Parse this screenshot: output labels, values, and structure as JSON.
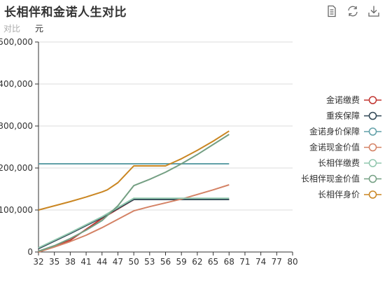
{
  "title": "长相伴和金诺人生对比",
  "subtitle_label": "对比",
  "unit_label": "元",
  "toolbox": [
    {
      "name": "data-view-icon"
    },
    {
      "name": "restore-icon"
    },
    {
      "name": "save-image-icon"
    }
  ],
  "chart_data": {
    "type": "line",
    "x_ticks": [
      32,
      35,
      38,
      41,
      44,
      47,
      50,
      53,
      56,
      59,
      62,
      65,
      68,
      71,
      74,
      77,
      80
    ],
    "ylim": [
      0,
      500000
    ],
    "y_ticks": [
      0,
      100000,
      200000,
      300000,
      400000,
      500000
    ],
    "y_tick_labels": [
      "0",
      "100,000",
      "200,000",
      "300,000",
      "400,000",
      "500,000"
    ],
    "grid": true,
    "legend_position": "right",
    "series": [
      {
        "name": "金诺缴费",
        "color": "#c23531",
        "points": [
          [
            32,
            0
          ],
          [
            38,
            28000
          ],
          [
            44,
            80000
          ],
          [
            50,
            125000
          ],
          [
            68,
            125000
          ]
        ]
      },
      {
        "name": "重疾保障",
        "color": "#2f4554",
        "points": [
          [
            32,
            8000
          ],
          [
            38,
            44000
          ],
          [
            44,
            82000
          ],
          [
            50,
            125000
          ],
          [
            68,
            125000
          ]
        ]
      },
      {
        "name": "金诺身价保障",
        "color": "#61a0a8",
        "points": [
          [
            32,
            210000
          ],
          [
            68,
            210000
          ]
        ]
      },
      {
        "name": "金诺现金价值",
        "color": "#d48265",
        "points": [
          [
            32,
            0
          ],
          [
            35,
            12000
          ],
          [
            38,
            25000
          ],
          [
            41,
            40000
          ],
          [
            44,
            58000
          ],
          [
            47,
            78000
          ],
          [
            50,
            98000
          ],
          [
            53,
            108000
          ],
          [
            56,
            117000
          ],
          [
            59,
            126000
          ],
          [
            62,
            137000
          ],
          [
            65,
            148000
          ],
          [
            68,
            160000
          ]
        ]
      },
      {
        "name": "长相伴缴费",
        "color": "#91c7ae",
        "points": [
          [
            32,
            10000
          ],
          [
            38,
            46000
          ],
          [
            44,
            84000
          ],
          [
            50,
            128000
          ],
          [
            68,
            128000
          ]
        ]
      },
      {
        "name": "长相伴现金价值",
        "color": "#749f83",
        "points": [
          [
            32,
            2000
          ],
          [
            35,
            15000
          ],
          [
            38,
            32000
          ],
          [
            41,
            52000
          ],
          [
            44,
            75000
          ],
          [
            47,
            110000
          ],
          [
            50,
            158000
          ],
          [
            53,
            173000
          ],
          [
            56,
            190000
          ],
          [
            59,
            210000
          ],
          [
            62,
            232000
          ],
          [
            65,
            256000
          ],
          [
            68,
            280000
          ]
        ]
      },
      {
        "name": "长相伴身价",
        "color": "#ca8622",
        "points": [
          [
            32,
            100000
          ],
          [
            35,
            110000
          ],
          [
            38,
            120000
          ],
          [
            41,
            131000
          ],
          [
            44,
            143000
          ],
          [
            45,
            148000
          ],
          [
            47,
            165000
          ],
          [
            50,
            205000
          ],
          [
            53,
            205000
          ],
          [
            56,
            205000
          ],
          [
            59,
            222000
          ],
          [
            62,
            242000
          ],
          [
            65,
            264000
          ],
          [
            68,
            288000
          ]
        ]
      }
    ]
  }
}
